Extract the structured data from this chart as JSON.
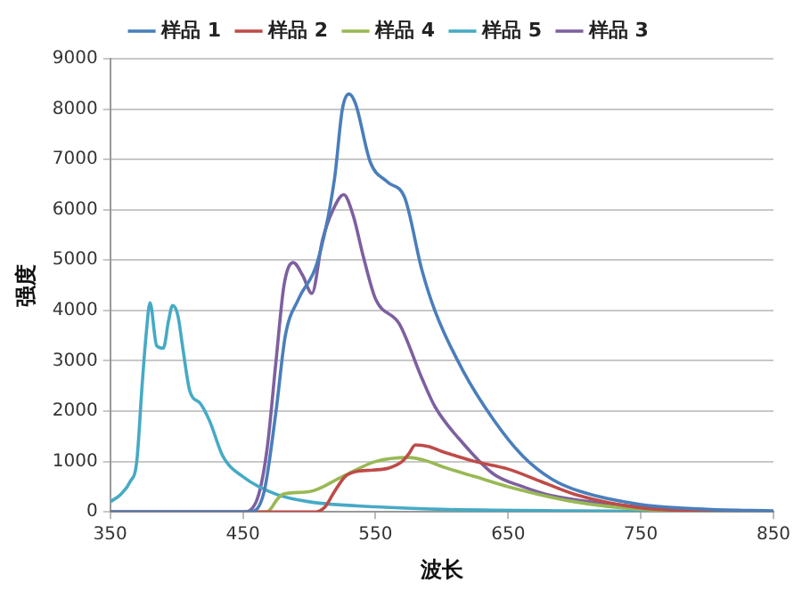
{
  "chart_data": {
    "type": "line",
    "xlabel": "波长",
    "ylabel": "强度",
    "xlim": [
      350,
      850
    ],
    "xticks": [
      350,
      450,
      550,
      650,
      750,
      850
    ],
    "ylim": [
      0,
      9000
    ],
    "yticks": [
      0,
      1000,
      2000,
      3000,
      4000,
      5000,
      6000,
      7000,
      8000,
      9000
    ],
    "grid": "y",
    "legend": "top",
    "marker": "none",
    "line_style": "solid",
    "series": [
      {
        "name": "样品 1",
        "color": "#4a7ebb",
        "x": [
          350,
          455,
          466,
          475,
          482,
          492,
          506,
          519,
          525,
          530,
          535,
          546,
          559,
          572,
          585,
          595,
          616,
          639,
          661,
          683,
          705,
          749,
          800,
          850
        ],
        "values": [
          0,
          0,
          400,
          2000,
          3500,
          4230,
          4950,
          6600,
          8000,
          8300,
          8100,
          6950,
          6550,
          6240,
          4800,
          3980,
          2800,
          1830,
          1110,
          650,
          400,
          150,
          50,
          20
        ]
      },
      {
        "name": "样品 2",
        "color": "#be4b48",
        "x": [
          350,
          505,
          512,
          519,
          527,
          535,
          548,
          560,
          570,
          575,
          580,
          590,
          600,
          612,
          625,
          650,
          675,
          700,
          750,
          800,
          850
        ],
        "values": [
          0,
          0,
          100,
          400,
          700,
          800,
          830,
          870,
          1000,
          1150,
          1330,
          1300,
          1200,
          1100,
          1000,
          850,
          600,
          350,
          80,
          20,
          0
        ]
      },
      {
        "name": "样品 4",
        "color": "#98b954",
        "x": [
          350,
          468,
          476,
          480,
          500,
          525,
          550,
          575,
          590,
          600,
          625,
          650,
          700,
          750,
          800,
          850
        ],
        "values": [
          0,
          0,
          250,
          350,
          400,
          700,
          1000,
          1080,
          1000,
          900,
          700,
          500,
          200,
          50,
          10,
          0
        ]
      },
      {
        "name": "样品 5",
        "color": "#46aac5",
        "x": [
          350,
          358,
          365,
          370,
          374,
          377,
          380,
          385,
          390,
          394,
          397,
          401,
          405,
          410,
          418,
          425,
          435,
          450,
          475,
          500,
          550,
          600,
          700,
          850
        ],
        "values": [
          200,
          350,
          600,
          1000,
          2500,
          3500,
          4150,
          3300,
          3250,
          3800,
          4100,
          3900,
          3200,
          2400,
          2150,
          1800,
          1100,
          700,
          350,
          200,
          100,
          50,
          20,
          0
        ]
      },
      {
        "name": "样品 3",
        "color": "#7d60a0",
        "x": [
          350,
          450,
          460,
          468,
          475,
          481,
          488,
          495,
          502,
          510,
          518,
          526,
          533,
          541,
          550,
          568,
          585,
          595,
          616,
          639,
          661,
          683,
          750,
          800,
          850
        ],
        "values": [
          0,
          0,
          200,
          1200,
          3000,
          4500,
          4950,
          4700,
          4340,
          5400,
          6000,
          6300,
          5900,
          5050,
          4230,
          3730,
          2650,
          2080,
          1360,
          750,
          500,
          320,
          100,
          30,
          0
        ]
      }
    ]
  }
}
